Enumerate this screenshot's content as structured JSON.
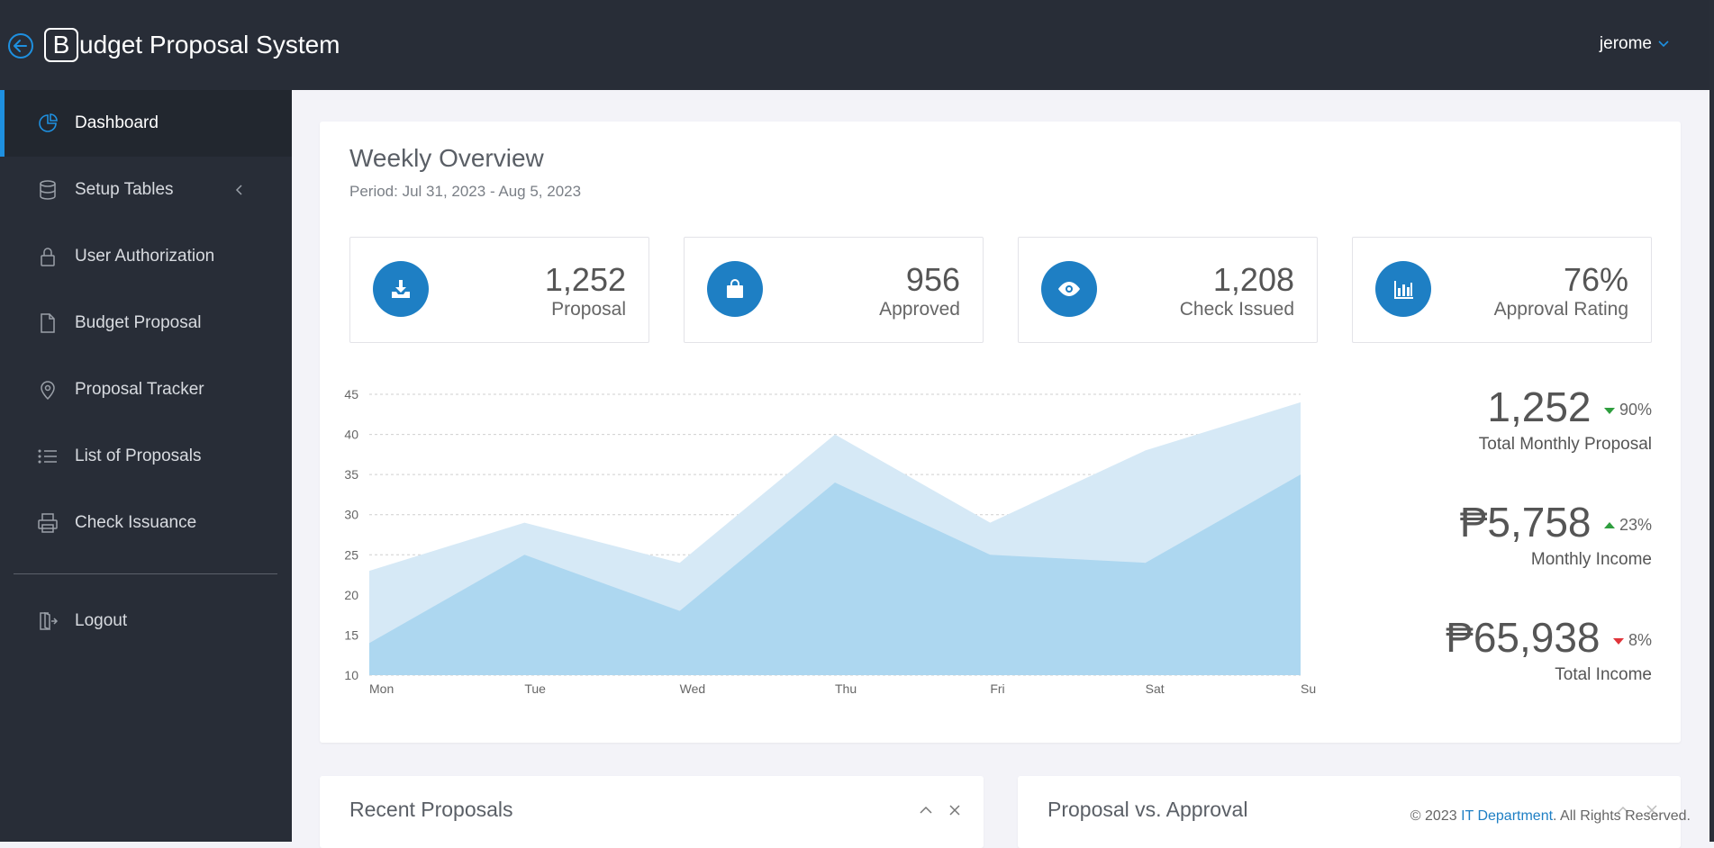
{
  "header": {
    "brand_letter": "B",
    "brand_rest": "udget Proposal System",
    "user": "jerome"
  },
  "sidebar": {
    "items": [
      {
        "label": "Dashboard",
        "icon": "pie-chart-icon",
        "active": true
      },
      {
        "label": "Setup Tables",
        "icon": "database-icon"
      },
      {
        "label": "User Authorization",
        "icon": "lock-icon"
      },
      {
        "label": "Budget Proposal",
        "icon": "file-icon"
      },
      {
        "label": "Proposal Tracker",
        "icon": "map-pin-icon"
      },
      {
        "label": "List of Proposals",
        "icon": "list-icon"
      },
      {
        "label": "Check Issuance",
        "icon": "printer-icon"
      }
    ],
    "logout": "Logout"
  },
  "overview": {
    "title": "Weekly Overview",
    "period": "Period: Jul 31, 2023 - Aug 5, 2023",
    "stats": [
      {
        "value": "1,252",
        "label": "Proposal",
        "icon": "download-icon"
      },
      {
        "value": "956",
        "label": "Approved",
        "icon": "shopping-bag-icon"
      },
      {
        "value": "1,208",
        "label": "Check Issued",
        "icon": "eye-icon"
      },
      {
        "value": "76%",
        "label": "Approval Rating",
        "icon": "bar-chart-icon"
      }
    ],
    "metrics": [
      {
        "value": "1,252",
        "change": "90%",
        "direction": "down",
        "direction_color": "#2e9e3e",
        "label": "Total Monthly Proposal"
      },
      {
        "value": "₱5,758",
        "change": "23%",
        "direction": "up",
        "direction_color": "#2e9e3e",
        "label": "Monthly Income"
      },
      {
        "value": "₱65,938",
        "change": "8%",
        "direction": "down",
        "direction_color": "#e0343a",
        "label": "Total Income"
      }
    ]
  },
  "chart_data": {
    "type": "area",
    "categories": [
      "Mon",
      "Tue",
      "Wed",
      "Thu",
      "Fri",
      "Sat",
      "Su"
    ],
    "series": [
      {
        "values": [
          23,
          29,
          24,
          40,
          29,
          38,
          44
        ],
        "color": "#d6e9f6"
      },
      {
        "values": [
          14,
          25,
          18,
          34,
          25,
          24,
          35
        ],
        "color": "#a6d3ee"
      }
    ],
    "ylim": [
      10,
      45
    ],
    "yticks": [
      10,
      15,
      20,
      25,
      30,
      35,
      40,
      45
    ],
    "grid": true
  },
  "recent": {
    "title": "Recent Proposals"
  },
  "pva": {
    "title": "Proposal vs. Approval"
  },
  "footer": {
    "prefix": "© 2023 ",
    "link": "IT Department",
    "suffix": ". All Rights Reserved."
  }
}
